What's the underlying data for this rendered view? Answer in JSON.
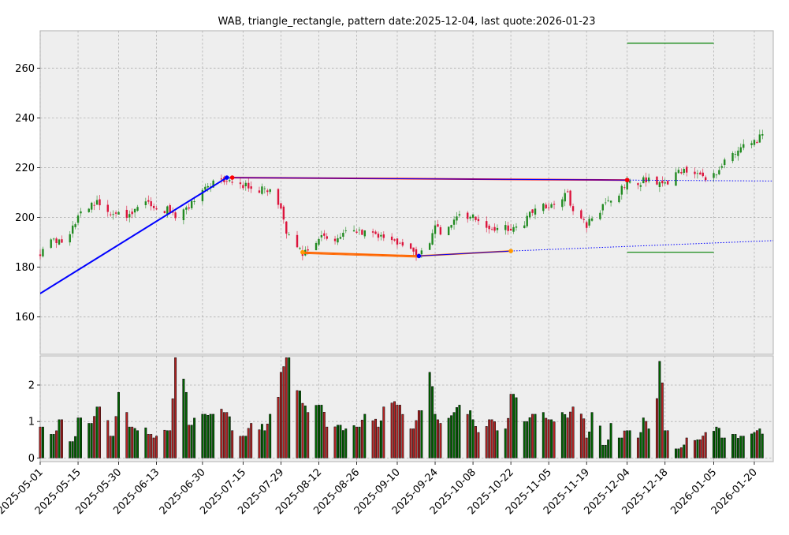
{
  "chart_data": {
    "type": "candlestick",
    "title": "WAB, triangle_rectangle, pattern date:2025-12-04, last quote:2026-01-23",
    "date_start": "2025-05-01",
    "date_end": "2026-01-27",
    "grid": true,
    "price_axis": {
      "ylim": [
        145,
        275
      ],
      "ticks": [
        160,
        180,
        200,
        220,
        240,
        260
      ]
    },
    "volume_axis": {
      "ylim": [
        -0.1,
        2.8
      ],
      "ticks": [
        0,
        1,
        2
      ]
    },
    "x_ticks": [
      "2025-05-01",
      "2025-05-15",
      "2025-05-30",
      "2025-06-13",
      "2025-06-30",
      "2025-07-15",
      "2025-07-29",
      "2025-08-12",
      "2025-08-26",
      "2025-09-10",
      "2025-09-24",
      "2025-10-08",
      "2025-10-22",
      "2025-11-05",
      "2025-11-19",
      "2025-12-04",
      "2025-12-18",
      "2026-01-05",
      "2026-01-20"
    ],
    "price_series": [
      [
        "2025-05-01",
        186
      ],
      [
        "2025-05-05",
        191
      ],
      [
        "2025-05-08",
        190
      ],
      [
        "2025-05-12",
        192
      ],
      [
        "2025-05-15",
        202
      ],
      [
        "2025-05-19",
        204
      ],
      [
        "2025-05-22",
        206
      ],
      [
        "2025-05-27",
        200
      ],
      [
        "2025-05-30",
        202
      ],
      [
        "2025-06-03",
        201
      ],
      [
        "2025-06-06",
        204
      ],
      [
        "2025-06-10",
        206
      ],
      [
        "2025-06-13",
        204
      ],
      [
        "2025-06-17",
        203
      ],
      [
        "2025-06-20",
        200
      ],
      [
        "2025-06-25",
        204
      ],
      [
        "2025-06-30",
        210
      ],
      [
        "2025-07-03",
        213
      ],
      [
        "2025-07-08",
        215
      ],
      [
        "2025-07-11",
        214
      ],
      [
        "2025-07-15",
        213
      ],
      [
        "2025-07-18",
        212
      ],
      [
        "2025-07-23",
        211
      ],
      [
        "2025-07-25",
        212
      ],
      [
        "2025-07-29",
        203
      ],
      [
        "2025-07-31",
        194
      ],
      [
        "2025-08-04",
        188
      ],
      [
        "2025-08-06",
        186
      ],
      [
        "2025-08-08",
        188
      ],
      [
        "2025-08-12",
        192
      ],
      [
        "2025-08-15",
        192
      ],
      [
        "2025-08-19",
        191
      ],
      [
        "2025-08-22",
        195
      ],
      [
        "2025-08-26",
        194
      ],
      [
        "2025-08-29",
        194
      ],
      [
        "2025-09-03",
        193
      ],
      [
        "2025-09-05",
        191
      ],
      [
        "2025-09-10",
        190
      ],
      [
        "2025-09-15",
        188
      ],
      [
        "2025-09-18",
        185
      ],
      [
        "2025-09-22",
        190
      ],
      [
        "2025-09-24",
        198
      ],
      [
        "2025-09-26",
        194
      ],
      [
        "2025-10-01",
        198
      ],
      [
        "2025-10-03",
        200
      ],
      [
        "2025-10-08",
        200
      ],
      [
        "2025-10-10",
        198
      ],
      [
        "2025-10-14",
        194
      ],
      [
        "2025-10-17",
        195
      ],
      [
        "2025-10-20",
        196
      ],
      [
        "2025-10-22",
        195
      ],
      [
        "2025-10-27",
        198
      ],
      [
        "2025-10-30",
        203
      ],
      [
        "2025-11-03",
        205
      ],
      [
        "2025-11-05",
        204
      ],
      [
        "2025-11-10",
        208
      ],
      [
        "2025-11-12",
        209
      ],
      [
        "2025-11-14",
        202
      ],
      [
        "2025-11-19",
        197
      ],
      [
        "2025-11-21",
        200
      ],
      [
        "2025-11-25",
        204
      ],
      [
        "2025-11-28",
        207
      ],
      [
        "2025-12-01",
        210
      ],
      [
        "2025-12-04",
        214
      ],
      [
        "2025-12-08",
        213
      ],
      [
        "2025-12-10",
        215
      ],
      [
        "2025-12-12",
        216
      ],
      [
        "2025-12-16",
        214
      ],
      [
        "2025-12-18",
        213
      ],
      [
        "2025-12-22",
        219
      ],
      [
        "2025-12-26",
        219
      ],
      [
        "2025-12-30",
        217
      ],
      [
        "2026-01-02",
        215
      ],
      [
        "2026-01-06",
        217
      ],
      [
        "2026-01-08",
        222
      ],
      [
        "2026-01-12",
        226
      ],
      [
        "2026-01-15",
        228
      ],
      [
        "2026-01-20",
        230
      ],
      [
        "2026-01-22",
        232
      ],
      [
        "2026-01-23",
        233
      ]
    ],
    "volume_series": [
      [
        "2025-05-01",
        0.85
      ],
      [
        "2025-05-05",
        0.65
      ],
      [
        "2025-05-08",
        1.05
      ],
      [
        "2025-05-12",
        0.45
      ],
      [
        "2025-05-15",
        1.1
      ],
      [
        "2025-05-19",
        0.95
      ],
      [
        "2025-05-22",
        1.4
      ],
      [
        "2025-05-27",
        0.6
      ],
      [
        "2025-05-30",
        1.8
      ],
      [
        "2025-06-03",
        0.85
      ],
      [
        "2025-06-06",
        0.75
      ],
      [
        "2025-06-10",
        0.65
      ],
      [
        "2025-06-13",
        0.6
      ],
      [
        "2025-06-17",
        0.75
      ],
      [
        "2025-06-20",
        2.75
      ],
      [
        "2025-06-25",
        0.9
      ],
      [
        "2025-06-30",
        1.2
      ],
      [
        "2025-07-03",
        1.2
      ],
      [
        "2025-07-08",
        1.25
      ],
      [
        "2025-07-11",
        0.75
      ],
      [
        "2025-07-15",
        0.6
      ],
      [
        "2025-07-18",
        0.95
      ],
      [
        "2025-07-23",
        0.75
      ],
      [
        "2025-07-25",
        1.2
      ],
      [
        "2025-07-29",
        2.35
      ],
      [
        "2025-07-31",
        2.75
      ],
      [
        "2025-08-04",
        1.85
      ],
      [
        "2025-08-06",
        1.5
      ],
      [
        "2025-08-08",
        1.25
      ],
      [
        "2025-08-12",
        1.45
      ],
      [
        "2025-08-15",
        0.85
      ],
      [
        "2025-08-19",
        0.9
      ],
      [
        "2025-08-22",
        0.8
      ],
      [
        "2025-08-26",
        0.85
      ],
      [
        "2025-08-29",
        1.2
      ],
      [
        "2025-09-03",
        0.85
      ],
      [
        "2025-09-05",
        1.4
      ],
      [
        "2025-09-10",
        1.45
      ],
      [
        "2025-09-15",
        0.8
      ],
      [
        "2025-09-18",
        1.3
      ],
      [
        "2025-09-22",
        2.35
      ],
      [
        "2025-09-24",
        1.2
      ],
      [
        "2025-09-26",
        0.95
      ],
      [
        "2025-10-01",
        1.25
      ],
      [
        "2025-10-03",
        1.45
      ],
      [
        "2025-10-08",
        1.05
      ],
      [
        "2025-10-10",
        0.7
      ],
      [
        "2025-10-14",
        1.05
      ],
      [
        "2025-10-17",
        0.75
      ],
      [
        "2025-10-20",
        0.8
      ],
      [
        "2025-10-22",
        1.75
      ],
      [
        "2025-10-27",
        1.0
      ],
      [
        "2025-10-30",
        1.2
      ],
      [
        "2025-11-03",
        1.25
      ],
      [
        "2025-11-05",
        1.05
      ],
      [
        "2025-11-10",
        1.25
      ],
      [
        "2025-11-12",
        1.1
      ],
      [
        "2025-11-14",
        1.4
      ],
      [
        "2025-11-19",
        0.55
      ],
      [
        "2025-11-21",
        1.25
      ],
      [
        "2025-11-25",
        0.35
      ],
      [
        "2025-11-28",
        0.95
      ],
      [
        "2025-12-01",
        0.55
      ],
      [
        "2025-12-04",
        0.75
      ],
      [
        "2025-12-08",
        0.55
      ],
      [
        "2025-12-10",
        1.1
      ],
      [
        "2025-12-12",
        0.8
      ],
      [
        "2025-12-16",
        2.65
      ],
      [
        "2025-12-18",
        0.75
      ],
      [
        "2025-12-22",
        0.25
      ],
      [
        "2025-12-26",
        0.55
      ],
      [
        "2025-12-30",
        0.5
      ],
      [
        "2026-01-02",
        0.7
      ],
      [
        "2026-01-06",
        0.85
      ],
      [
        "2026-01-08",
        0.55
      ],
      [
        "2026-01-12",
        0.65
      ],
      [
        "2026-01-15",
        0.6
      ],
      [
        "2026-01-20",
        0.7
      ],
      [
        "2026-01-22",
        0.8
      ],
      [
        "2026-01-23",
        0.75
      ]
    ],
    "pattern_lines": [
      {
        "color": "#0000ff",
        "width": 2,
        "points": [
          [
            "2025-04-17",
            160
          ],
          [
            "2025-07-09",
            216
          ]
        ]
      },
      {
        "color": "#ff0000",
        "width": 2,
        "points": [
          [
            "2025-07-11",
            216
          ],
          [
            "2025-12-04",
            215
          ]
        ]
      },
      {
        "color": "#0000ff",
        "width": 1,
        "points": [
          [
            "2025-07-09",
            216
          ],
          [
            "2025-12-04",
            215
          ]
        ]
      },
      {
        "color": "#ff6600",
        "width": 2,
        "points": [
          [
            "2025-08-06",
            186
          ],
          [
            "2025-09-18",
            184.5
          ],
          [
            "2025-10-22",
            186.5
          ]
        ]
      },
      {
        "color": "#0000ff",
        "width": 1,
        "points": [
          [
            "2025-09-18",
            184.5
          ],
          [
            "2025-10-22",
            186.5
          ]
        ]
      },
      {
        "color": "#ff6600",
        "width": 1,
        "points": [
          [
            "2025-08-06",
            185.5
          ],
          [
            "2025-09-18",
            184
          ]
        ]
      }
    ],
    "pattern_markers": [
      {
        "color": "#0000ff",
        "points": [
          [
            "2025-07-09",
            216
          ],
          [
            "2025-09-18",
            184.5
          ],
          [
            "2025-12-04",
            215
          ]
        ]
      },
      {
        "color": "#ff0000",
        "points": [
          [
            "2025-07-11",
            216
          ],
          [
            "2025-12-04",
            215
          ]
        ]
      },
      {
        "color": "#ff9900",
        "points": [
          [
            "2025-08-06",
            186
          ],
          [
            "2025-10-22",
            186.5
          ]
        ]
      }
    ],
    "projection_lines": [
      {
        "color": "#0000ff",
        "points": [
          [
            "2025-12-04",
            215
          ],
          [
            "2026-02-15",
            214.5
          ]
        ]
      },
      {
        "color": "#0000ff",
        "points": [
          [
            "2025-10-22",
            186.5
          ],
          [
            "2026-02-15",
            191.5
          ]
        ]
      }
    ],
    "target_lines": [
      {
        "color": "#008000",
        "y": 270,
        "x": [
          "2025-12-04",
          "2026-01-05"
        ]
      },
      {
        "color": "#008000",
        "y": 186,
        "x": [
          "2025-12-04",
          "2026-01-05"
        ]
      }
    ]
  }
}
